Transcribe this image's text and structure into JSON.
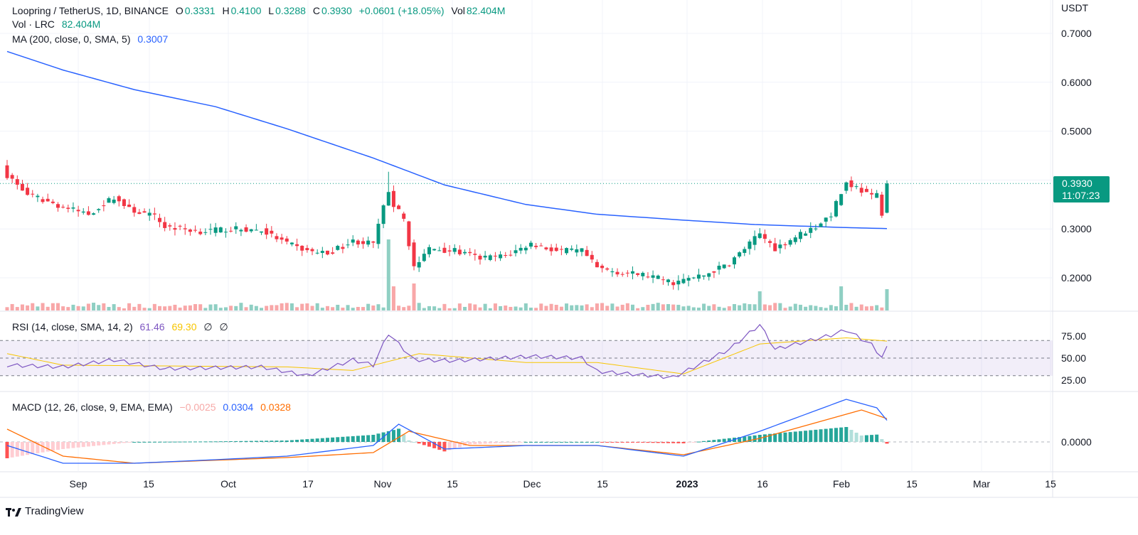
{
  "header": {
    "symbol": "Loopring / TetherUS, 1D, BINANCE",
    "o_label": "O",
    "o_value": "0.3331",
    "h_label": "H",
    "h_value": "0.4100",
    "l_label": "L",
    "l_value": "0.3288",
    "c_label": "C",
    "c_value": "0.3930",
    "change": "+0.0601 (+18.05%)",
    "vol_label": "Vol",
    "vol_value": "82.404M",
    "vol_line_label": "Vol · LRC",
    "vol_line_value": "82.404M",
    "ma_label": "MA (200, close, 0, SMA, 5)",
    "ma_value": "0.3007"
  },
  "price_axis": {
    "unit": "USDT",
    "ticks": [
      "0.7000",
      "0.6000",
      "0.5000",
      "0.3000",
      "0.2000"
    ],
    "last_price": "0.3930",
    "countdown": "11:07:23"
  },
  "rsi": {
    "label": "RSI (14, close, SMA, 14, 2)",
    "value": "61.46",
    "ma_value": "69.30",
    "extra1": "∅",
    "extra2": "∅",
    "ticks": [
      "75.00",
      "50.00",
      "25.00"
    ]
  },
  "macd": {
    "label": "MACD (12, 26, close, 9, EMA, EMA)",
    "hist_value": "−0.0025",
    "macd_value": "0.0304",
    "signal_value": "0.0328",
    "ticks": [
      "0.0000"
    ]
  },
  "time_axis": {
    "labels": [
      "Sep",
      "15",
      "Oct",
      "17",
      "Nov",
      "15",
      "Dec",
      "15",
      "2023",
      "16",
      "Feb",
      "15",
      "Mar",
      "15"
    ]
  },
  "brand": {
    "name": "TradingView"
  },
  "colors": {
    "up": "#089981",
    "down": "#f23645",
    "ma": "#2962ff",
    "vol_up": "#8fcfc3",
    "vol_down": "#f8a7a8",
    "rsi": "#7e57c2",
    "rsi_ma": "#f7c500",
    "macd": "#2962ff",
    "signal": "#ff6d00",
    "hist_up": "#26a69a",
    "hist_down": "#ff5252"
  },
  "chart_data": {
    "type": "candlestick",
    "x_start": "2022-08-21",
    "x_end": "2023-02-10",
    "price_keypoints": [
      [
        "2022-08-21",
        0.41
      ],
      [
        "2022-08-25",
        0.37
      ],
      [
        "2022-09-01",
        0.345
      ],
      [
        "2022-09-06",
        0.33
      ],
      [
        "2022-09-11",
        0.365
      ],
      [
        "2022-09-14",
        0.34
      ],
      [
        "2022-09-19",
        0.325
      ],
      [
        "2022-09-21",
        0.305
      ],
      [
        "2022-09-28",
        0.295
      ],
      [
        "2022-10-04",
        0.3
      ],
      [
        "2022-10-10",
        0.297
      ],
      [
        "2022-10-15",
        0.27
      ],
      [
        "2022-10-19",
        0.255
      ],
      [
        "2022-10-23",
        0.25
      ],
      [
        "2022-10-28",
        0.275
      ],
      [
        "2022-11-01",
        0.27
      ],
      [
        "2022-11-04",
        0.38
      ],
      [
        "2022-11-05",
        0.35
      ],
      [
        "2022-11-07",
        0.32
      ],
      [
        "2022-11-09",
        0.22
      ],
      [
        "2022-11-12",
        0.26
      ],
      [
        "2022-11-17",
        0.255
      ],
      [
        "2022-11-22",
        0.24
      ],
      [
        "2022-11-27",
        0.245
      ],
      [
        "2022-12-02",
        0.27
      ],
      [
        "2022-12-07",
        0.255
      ],
      [
        "2022-12-12",
        0.255
      ],
      [
        "2022-12-15",
        0.22
      ],
      [
        "2022-12-20",
        0.21
      ],
      [
        "2022-12-25",
        0.205
      ],
      [
        "2022-12-30",
        0.19
      ],
      [
        "2023-01-05",
        0.205
      ],
      [
        "2023-01-10",
        0.23
      ],
      [
        "2023-01-16",
        0.29
      ],
      [
        "2023-01-19",
        0.26
      ],
      [
        "2023-01-24",
        0.29
      ],
      [
        "2023-01-27",
        0.305
      ],
      [
        "2023-01-30",
        0.33
      ],
      [
        "2023-02-02",
        0.395
      ],
      [
        "2023-02-04",
        0.385
      ],
      [
        "2023-02-07",
        0.365
      ],
      [
        "2023-02-08",
        0.37
      ],
      [
        "2023-02-09",
        0.333
      ],
      [
        "2023-02-10",
        0.393
      ]
    ],
    "ma200_keypoints": [
      [
        "2022-08-21",
        0.663
      ],
      [
        "2022-09-01",
        0.625
      ],
      [
        "2022-09-15",
        0.585
      ],
      [
        "2022-10-01",
        0.55
      ],
      [
        "2022-10-15",
        0.505
      ],
      [
        "2022-11-01",
        0.445
      ],
      [
        "2022-11-15",
        0.39
      ],
      [
        "2022-12-01",
        0.35
      ],
      [
        "2022-12-15",
        0.33
      ],
      [
        "2023-01-01",
        0.318
      ],
      [
        "2023-01-15",
        0.309
      ],
      [
        "2023-02-01",
        0.303
      ],
      [
        "2023-02-10",
        0.3007
      ]
    ],
    "volume_spikes": [
      [
        "2022-11-04",
        1.0
      ],
      [
        "2022-11-05",
        0.34
      ],
      [
        "2022-11-09",
        0.38
      ],
      [
        "2023-01-16",
        0.27
      ],
      [
        "2023-02-01",
        0.34
      ],
      [
        "2023-02-10",
        0.3
      ]
    ],
    "rsi_keypoints": [
      [
        "2022-08-21",
        42
      ],
      [
        "2022-09-01",
        40
      ],
      [
        "2022-09-11",
        48
      ],
      [
        "2022-09-21",
        38
      ],
      [
        "2022-10-10",
        40
      ],
      [
        "2022-10-19",
        30
      ],
      [
        "2022-10-28",
        48
      ],
      [
        "2022-11-01",
        42
      ],
      [
        "2022-11-04",
        78
      ],
      [
        "2022-11-09",
        48
      ],
      [
        "2022-11-17",
        47
      ],
      [
        "2022-12-02",
        52
      ],
      [
        "2022-12-12",
        50
      ],
      [
        "2022-12-15",
        35
      ],
      [
        "2022-12-30",
        28
      ],
      [
        "2023-01-10",
        60
      ],
      [
        "2023-01-16",
        88
      ],
      [
        "2023-01-19",
        60
      ],
      [
        "2023-01-30",
        76
      ],
      [
        "2023-02-02",
        82
      ],
      [
        "2023-02-07",
        65
      ],
      [
        "2023-02-09",
        51
      ],
      [
        "2023-02-10",
        61.46
      ]
    ],
    "rsi_ma_keypoints": [
      [
        "2022-08-21",
        55
      ],
      [
        "2022-09-01",
        42
      ],
      [
        "2022-10-15",
        40
      ],
      [
        "2022-10-28",
        36
      ],
      [
        "2022-11-10",
        55
      ],
      [
        "2022-12-01",
        45
      ],
      [
        "2022-12-15",
        45
      ],
      [
        "2023-01-01",
        32
      ],
      [
        "2023-01-16",
        66
      ],
      [
        "2023-02-02",
        73
      ],
      [
        "2023-02-10",
        69.3
      ]
    ],
    "macd_keypoints": [
      [
        "2022-08-21",
        -0.005
      ],
      [
        "2022-09-01",
        -0.03
      ],
      [
        "2022-09-15",
        -0.03
      ],
      [
        "2022-10-01",
        -0.025
      ],
      [
        "2022-10-15",
        -0.02
      ],
      [
        "2022-11-01",
        -0.005
      ],
      [
        "2022-11-06",
        0.025
      ],
      [
        "2022-11-15",
        -0.01
      ],
      [
        "2022-12-01",
        -0.005
      ],
      [
        "2022-12-15",
        -0.005
      ],
      [
        "2023-01-01",
        -0.02
      ],
      [
        "2023-01-16",
        0.015
      ],
      [
        "2023-02-02",
        0.06
      ],
      [
        "2023-02-08",
        0.048
      ],
      [
        "2023-02-10",
        0.0304
      ]
    ],
    "signal_keypoints": [
      [
        "2022-08-21",
        0.018
      ],
      [
        "2022-09-01",
        -0.02
      ],
      [
        "2022-09-15",
        -0.03
      ],
      [
        "2022-10-15",
        -0.022
      ],
      [
        "2022-11-01",
        -0.015
      ],
      [
        "2022-11-08",
        0.015
      ],
      [
        "2022-11-20",
        -0.005
      ],
      [
        "2022-12-15",
        -0.005
      ],
      [
        "2023-01-01",
        -0.018
      ],
      [
        "2023-01-16",
        0.005
      ],
      [
        "2023-02-05",
        0.045
      ],
      [
        "2023-02-10",
        0.0328
      ]
    ],
    "price_range": [
      0.15,
      0.72
    ],
    "rsi_range": [
      20,
      90
    ],
    "macd_range": [
      -0.06,
      0.08
    ]
  }
}
